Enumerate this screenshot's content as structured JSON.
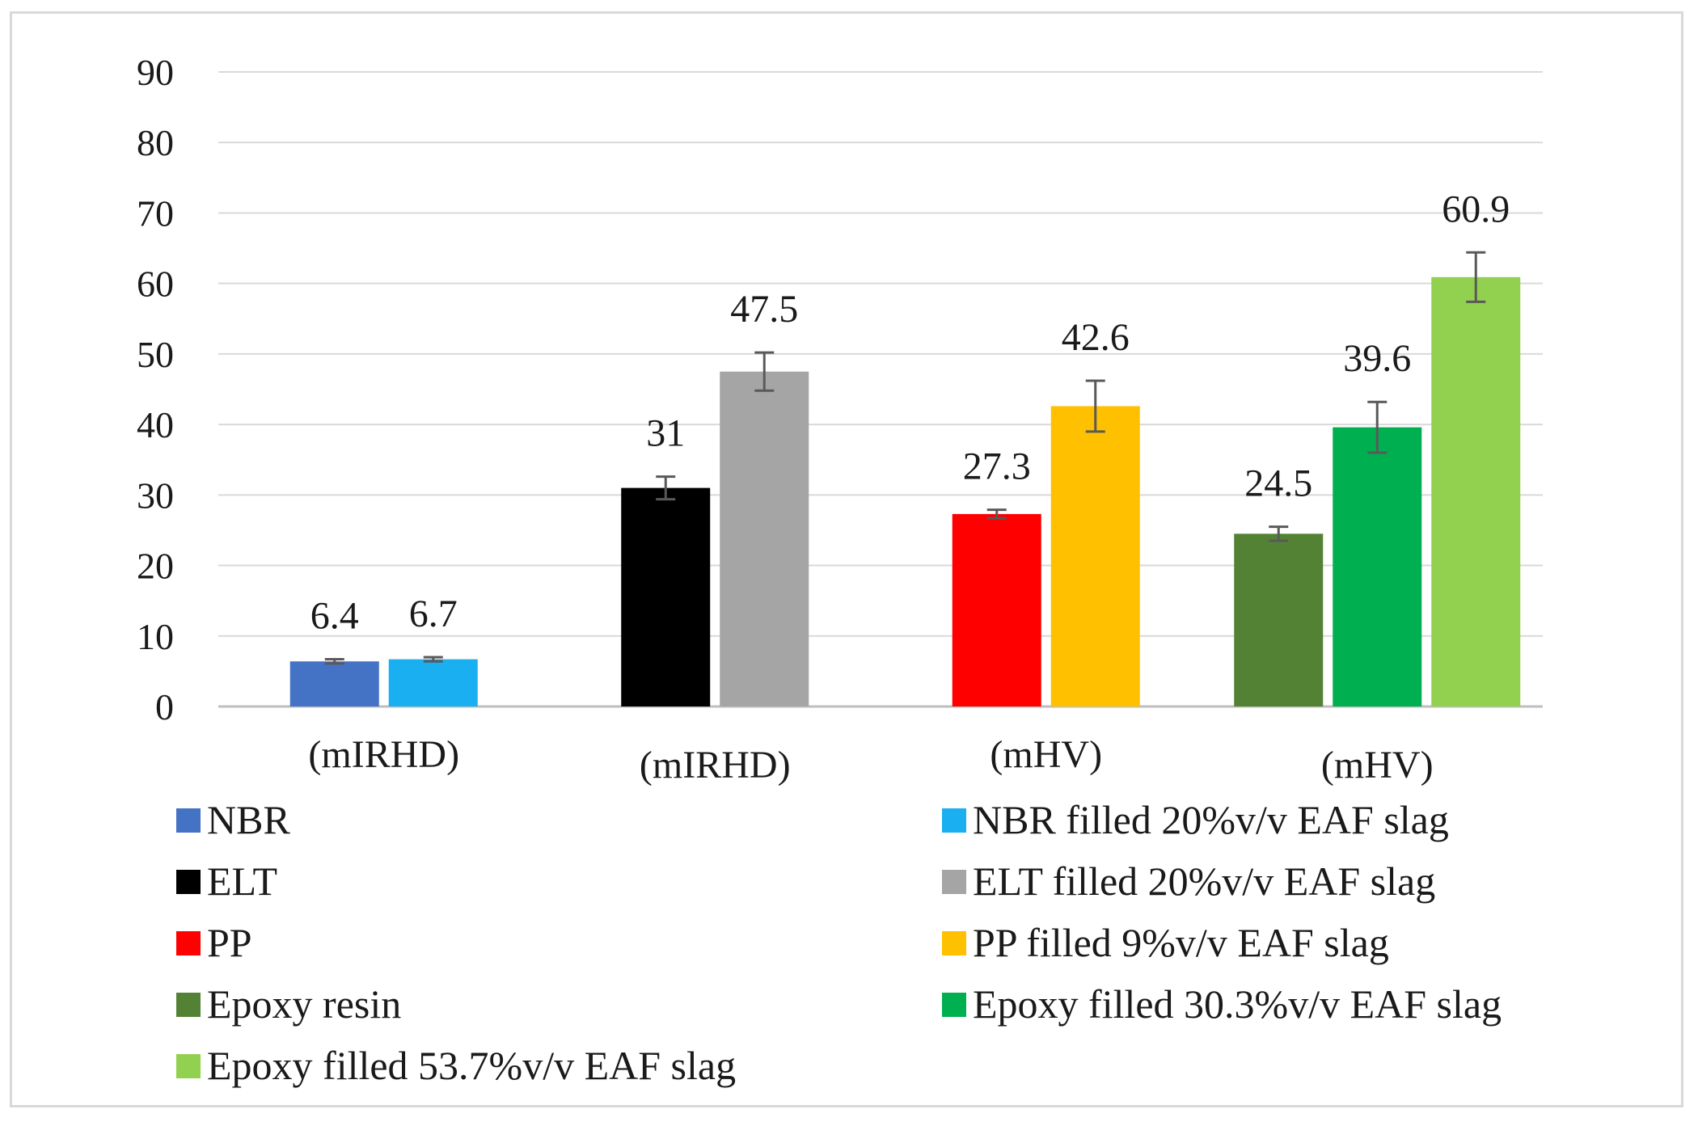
{
  "chart_data": {
    "type": "bar",
    "title": "",
    "xlabel": "",
    "ylabel": "",
    "ylim": [
      0,
      90
    ],
    "yticks": [
      0,
      10,
      20,
      30,
      40,
      50,
      60,
      70,
      80,
      90
    ],
    "grid": true,
    "legend_position": "bottom",
    "groups": [
      {
        "label": "(mIRHD)",
        "bars": [
          {
            "series": "NBR",
            "value": 6.4,
            "label": "6.4",
            "error": 0.3
          },
          {
            "series": "NBR filled 20%v/v EAF slag",
            "value": 6.7,
            "label": "6.7",
            "error": 0.3
          }
        ]
      },
      {
        "label": "(mIRHD)",
        "bars": [
          {
            "series": "ELT",
            "value": 31,
            "label": "31",
            "error": 1.6
          },
          {
            "series": "ELT filled 20%v/v EAF slag",
            "value": 47.5,
            "label": "47.5",
            "error": 2.7
          }
        ]
      },
      {
        "label": "(mHV)",
        "bars": [
          {
            "series": "PP",
            "value": 27.3,
            "label": "27.3",
            "error": 0.6
          },
          {
            "series": "PP filled 9%v/v EAF slag",
            "value": 42.6,
            "label": "42.6",
            "error": 3.6
          }
        ]
      },
      {
        "label": "(mHV)",
        "bars": [
          {
            "series": "Epoxy resin",
            "value": 24.5,
            "label": "24.5",
            "error": 1.0
          },
          {
            "series": "Epoxy filled 30.3%v/v EAF slag",
            "value": 39.6,
            "label": "39.6",
            "error": 3.6
          },
          {
            "series": "Epoxy filled 53.7%v/v EAF slag",
            "value": 60.9,
            "label": "60.9",
            "error": 3.5
          }
        ]
      }
    ],
    "series": [
      {
        "name": "NBR",
        "color": "#4472c4"
      },
      {
        "name": "NBR filled 20%v/v EAF slag",
        "color": "#1aaff0"
      },
      {
        "name": "ELT",
        "color": "#000000"
      },
      {
        "name": "ELT filled 20%v/v EAF slag",
        "color": "#a5a5a5"
      },
      {
        "name": "PP",
        "color": "#ff0000"
      },
      {
        "name": "PP filled 9%v/v EAF slag",
        "color": "#ffc000"
      },
      {
        "name": "Epoxy resin",
        "color": "#548235"
      },
      {
        "name": "Epoxy filled 30.3%v/v EAF slag",
        "color": "#00b050"
      },
      {
        "name": "Epoxy filled 53.7%v/v EAF slag",
        "color": "#92d050"
      }
    ]
  }
}
